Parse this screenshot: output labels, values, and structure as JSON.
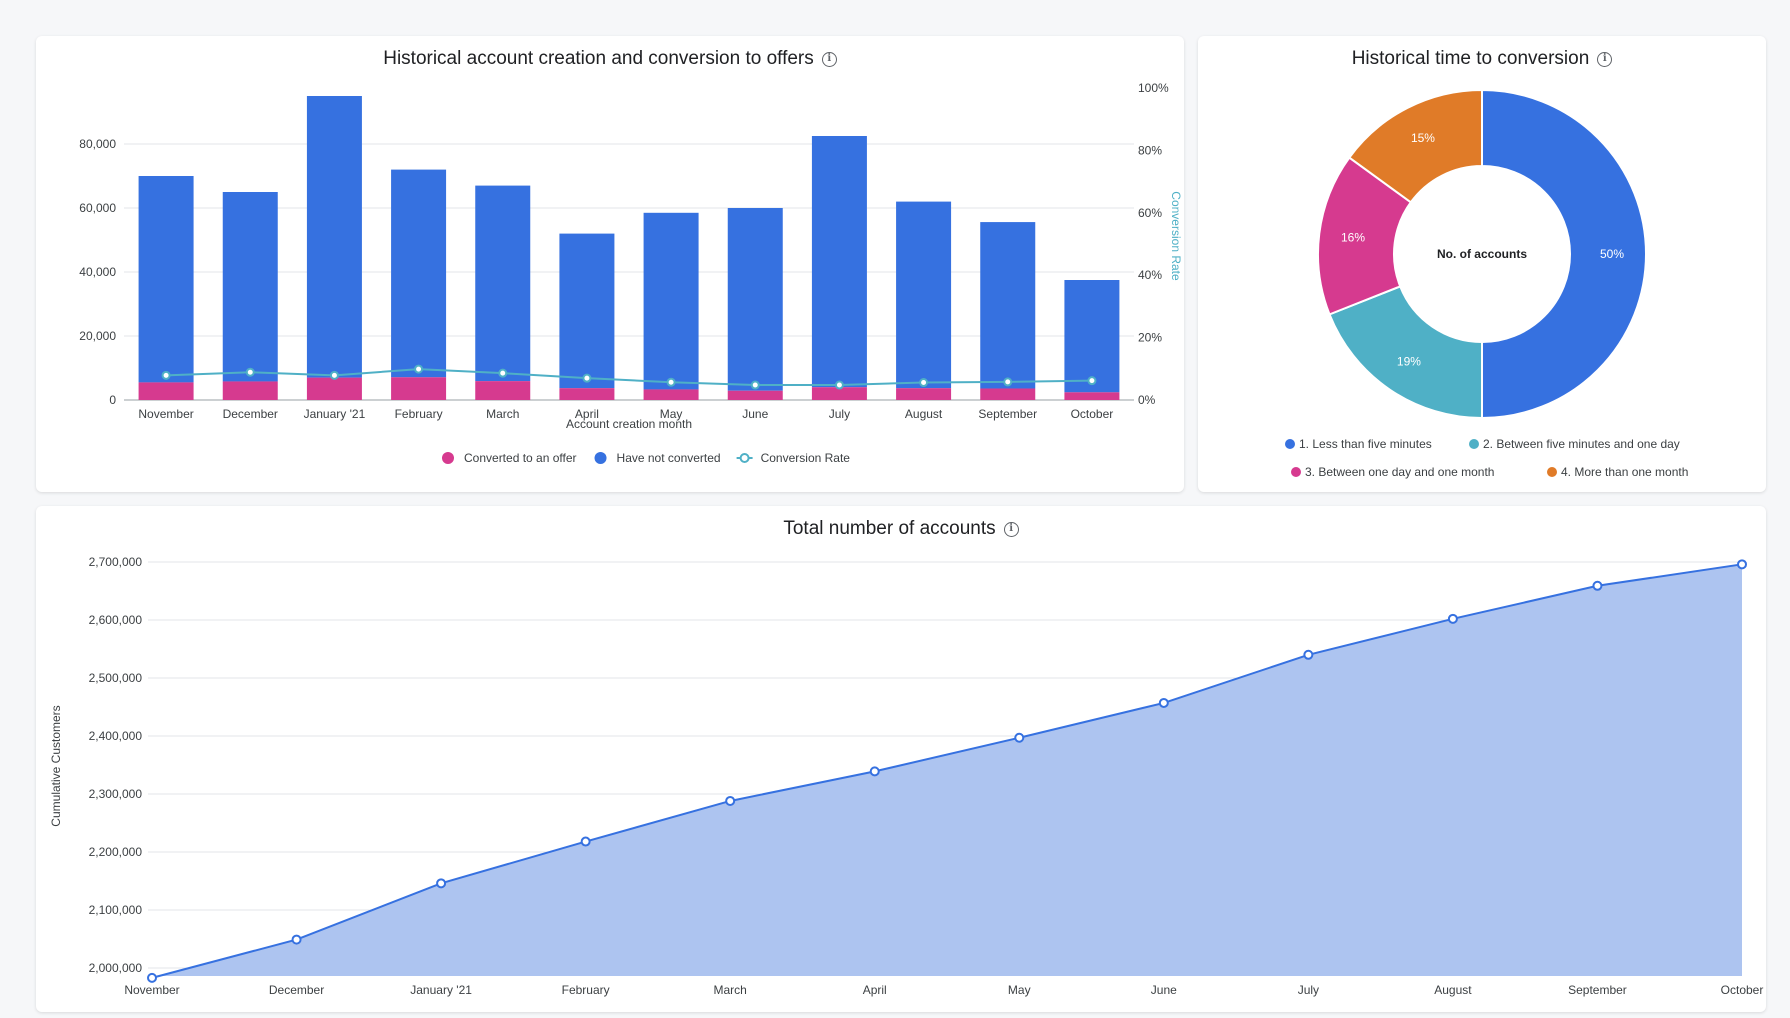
{
  "chart_data": [
    {
      "type": "bar",
      "title": "Historical account creation and conversion to offers",
      "xlabel": "Account creation month",
      "ylabel": "",
      "y2label": "Conversion Rate",
      "ylim": [
        0,
        80000
      ],
      "y2lim": [
        0,
        100
      ],
      "yticks": [
        "0",
        "20,000",
        "40,000",
        "60,000",
        "80,000"
      ],
      "y2ticks": [
        "0%",
        "20%",
        "40%",
        "60%",
        "80%",
        "100%"
      ],
      "categories": [
        "November",
        "December",
        "January '21",
        "February",
        "March",
        "April",
        "May",
        "June",
        "July",
        "August",
        "September",
        "October"
      ],
      "stacked": true,
      "series": [
        {
          "name": "Converted to an offer",
          "color": "#d63a8f",
          "values": [
            5500,
            5800,
            7000,
            7100,
            5900,
            3700,
            3300,
            2900,
            4000,
            3700,
            3600,
            2400
          ]
        },
        {
          "name": "Have not converted",
          "color": "#3671e0",
          "values": [
            64500,
            59200,
            88000,
            64900,
            61100,
            48300,
            55200,
            57100,
            78500,
            58300,
            52000,
            35100
          ]
        },
        {
          "name": "Conversion Rate",
          "color": "#4fb0c6",
          "axis": "right",
          "values": [
            7.9,
            8.9,
            7.9,
            9.9,
            8.6,
            7.0,
            5.7,
            4.8,
            4.8,
            5.6,
            5.8,
            6.2
          ]
        }
      ],
      "legend": "bottom"
    },
    {
      "type": "pie",
      "title": "Historical time to conversion",
      "center_label": "No. of accounts",
      "labels": [
        "1. Less than five minutes",
        "2. Between five minutes and one day",
        "3. Between one day and one month",
        "4. More than one month"
      ],
      "values": [
        50,
        19,
        16,
        15
      ],
      "value_labels": [
        "50%",
        "19%",
        "16%",
        "15%"
      ],
      "colors": [
        "#3671e0",
        "#4fb0c6",
        "#d63a8f",
        "#e07b28"
      ],
      "legend": "bottom"
    },
    {
      "type": "area",
      "title": "Total number of accounts",
      "xlabel": "",
      "ylabel": "Cumulative Customers",
      "ylim": [
        2000000,
        2700000
      ],
      "yticks": [
        "2,000,000",
        "2,100,000",
        "2,200,000",
        "2,300,000",
        "2,400,000",
        "2,500,000",
        "2,600,000",
        "2,700,000"
      ],
      "categories": [
        "November",
        "December",
        "January '21",
        "February",
        "March",
        "April",
        "May",
        "June",
        "July",
        "August",
        "September",
        "October"
      ],
      "series": [
        {
          "name": "",
          "color": "#3671e0",
          "fill": "#adc4f0",
          "values": [
            1983000,
            2049000,
            2146000,
            2218000,
            2288000,
            2339000,
            2397000,
            2457000,
            2540000,
            2602000,
            2659000,
            2696000
          ]
        }
      ],
      "legend": "none"
    }
  ]
}
